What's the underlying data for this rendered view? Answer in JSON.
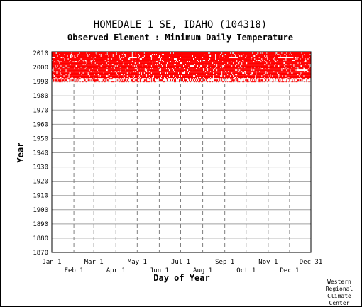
{
  "chart_data": {
    "type": "heatmap",
    "title": "HOMEDALE 1 SE, IDAHO   (104318)",
    "subtitle": "Observed Element : Minimum Daily Temperature",
    "xlabel": "Day of Year",
    "ylabel": "Year",
    "xlim": [
      1,
      365
    ],
    "ylim": [
      1870,
      2011
    ],
    "x_tick_labels_row1": [
      {
        "label": "Jan 1",
        "day": 1
      },
      {
        "label": "Mar 1",
        "day": 60
      },
      {
        "label": "May 1",
        "day": 121
      },
      {
        "label": "Jul 1",
        "day": 182
      },
      {
        "label": "Sep 1",
        "day": 244
      },
      {
        "label": "Nov 1",
        "day": 305
      },
      {
        "label": "Dec 31",
        "day": 365
      }
    ],
    "x_tick_labels_row2": [
      {
        "label": "Feb 1",
        "day": 32
      },
      {
        "label": "Apr 1",
        "day": 91
      },
      {
        "label": "Jun 1",
        "day": 152
      },
      {
        "label": "Aug 1",
        "day": 213
      },
      {
        "label": "Oct 1",
        "day": 274
      },
      {
        "label": "Dec 1",
        "day": 335
      }
    ],
    "y_ticks": [
      1870,
      1880,
      1890,
      1900,
      1910,
      1920,
      1930,
      1940,
      1950,
      1960,
      1970,
      1980,
      1990,
      2000,
      2010
    ],
    "data_color": "#ff0000",
    "data_coverage": {
      "start_year": 1990,
      "end_year": 2010
    },
    "sparse_years": [
      1990,
      1991,
      1992
    ],
    "gaps": [
      {
        "year": 2007,
        "start_day": 1,
        "end_day": 5
      },
      {
        "year": 2007,
        "start_day": 110,
        "end_day": 120
      },
      {
        "year": 2007,
        "start_day": 250,
        "end_day": 262
      },
      {
        "year": 2007,
        "start_day": 320,
        "end_day": 340
      },
      {
        "year": 2001,
        "start_day": 195,
        "end_day": 200
      },
      {
        "year": 1998,
        "start_day": 345,
        "end_day": 360
      }
    ]
  },
  "credit": [
    "Western",
    "Regional",
    "Climate",
    "Center"
  ]
}
